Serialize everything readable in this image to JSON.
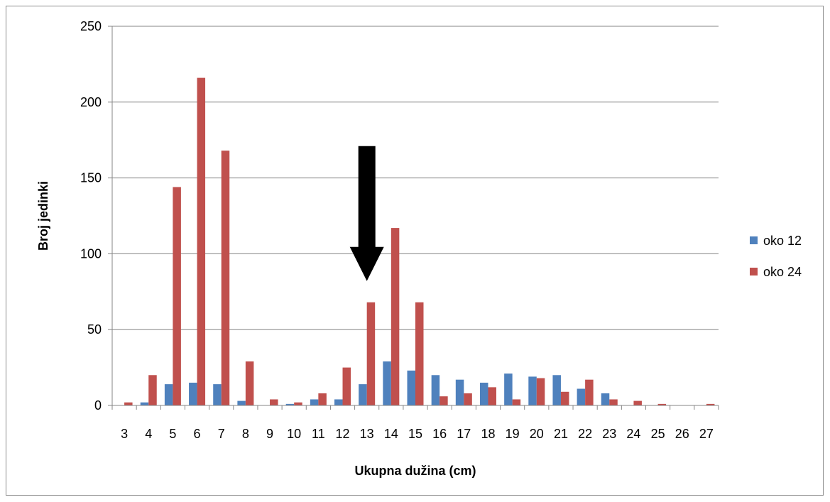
{
  "chart_data": {
    "type": "bar",
    "xlabel": "Ukupna dužina (cm)",
    "ylabel": "Broj jedinki",
    "ylim": [
      0,
      250
    ],
    "yticks": [
      0,
      50,
      100,
      150,
      200,
      250
    ],
    "grid": true,
    "legend_position": "right",
    "categories": [
      "3",
      "4",
      "5",
      "6",
      "7",
      "8",
      "9",
      "10",
      "11",
      "12",
      "13",
      "14",
      "15",
      "16",
      "17",
      "18",
      "19",
      "20",
      "21",
      "22",
      "23",
      "24",
      "25",
      "26",
      "27"
    ],
    "series": [
      {
        "name": "oko 12",
        "color": "#4f81bd",
        "values": [
          0,
          2,
          14,
          15,
          14,
          3,
          0,
          1,
          4,
          4,
          14,
          29,
          23,
          20,
          17,
          15,
          21,
          19,
          20,
          11,
          8,
          0,
          0,
          0,
          0
        ]
      },
      {
        "name": "oko 24",
        "color": "#c0504d",
        "values": [
          2,
          20,
          144,
          216,
          168,
          29,
          4,
          2,
          8,
          25,
          68,
          117,
          68,
          6,
          8,
          12,
          4,
          18,
          9,
          17,
          4,
          3,
          1,
          0,
          1
        ]
      }
    ],
    "annotations": [
      {
        "type": "down-arrow",
        "category": "13",
        "from_value": 171,
        "to_value": 82,
        "color": "#000000"
      }
    ]
  }
}
